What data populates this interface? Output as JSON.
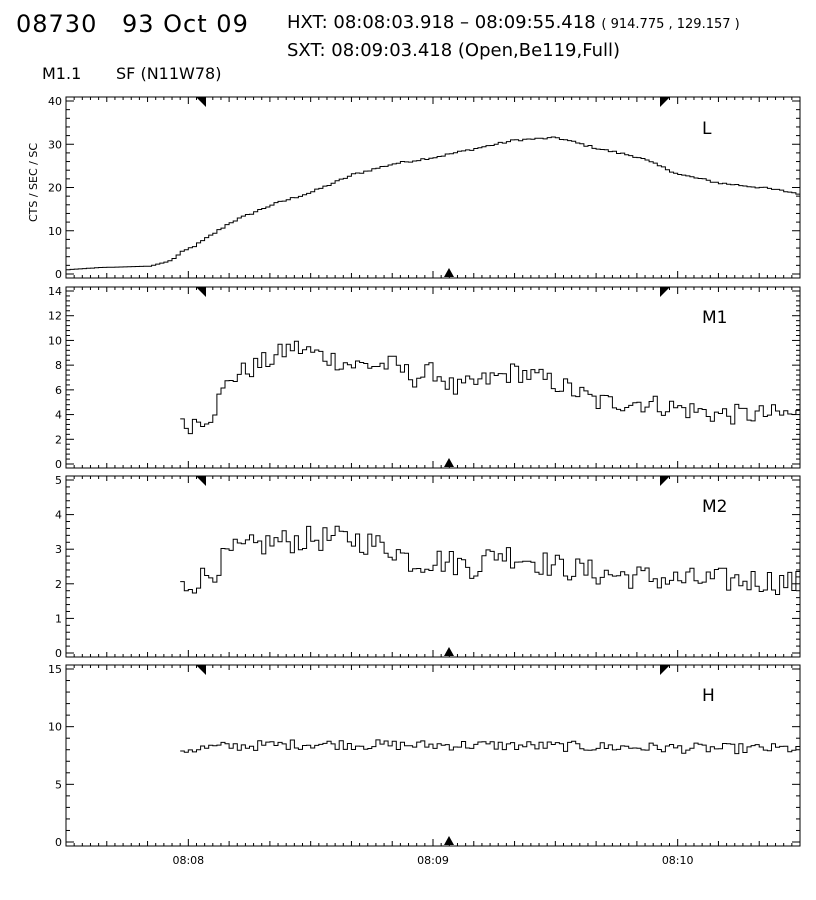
{
  "header": {
    "event_id": "08730",
    "date": "93 Oct 09",
    "hxt_label": "HXT:",
    "hxt_range": "08:08:03.918 – 08:09:55.418",
    "hxt_coords": "( 914.775 , 129.157 )",
    "sxt_label": "SXT:",
    "sxt_time": "08:09:03.418 (Open,Be119,Full)",
    "flare_class": "M1.1",
    "flare_location": "SF (N11W78)"
  },
  "chart_data": [
    {
      "type": "line",
      "style": "histogram",
      "band": "L",
      "ylabel": "CTS / SEC / SC",
      "ylim": [
        0,
        40
      ],
      "yticks": [
        0,
        10,
        20,
        30,
        40
      ],
      "xlim": [
        "08:07:30",
        "08:10:30"
      ],
      "xticks": [
        "08:08",
        "08:09",
        "08:10"
      ],
      "series": [
        {
          "x": [
            "08:07:30",
            "08:07:38",
            "08:07:50",
            "08:07:55",
            "08:07:58",
            "08:08:02",
            "08:08:10",
            "08:08:20",
            "08:08:30",
            "08:08:40",
            "08:08:50",
            "08:09:00",
            "08:09:10",
            "08:09:20",
            "08:09:30",
            "08:09:40",
            "08:09:50",
            "08:10:00",
            "08:10:10",
            "08:10:20",
            "08:10:30"
          ],
          "y": [
            1,
            1.5,
            1.8,
            3,
            5,
            7,
            12,
            16,
            19,
            23,
            25.5,
            27,
            29,
            31,
            31.5,
            29,
            27,
            23,
            21,
            20,
            18.5
          ]
        }
      ]
    },
    {
      "type": "line",
      "style": "histogram",
      "band": "M1",
      "ylabel": "",
      "ylim": [
        0,
        14
      ],
      "yticks": [
        0,
        2,
        4,
        6,
        8,
        10,
        12,
        14
      ],
      "xlim": [
        "08:07:30",
        "08:10:30"
      ],
      "xticks": [
        "08:08",
        "08:09",
        "08:10"
      ],
      "series": [
        {
          "x": [
            "08:07:58",
            "08:08:05",
            "08:08:10",
            "08:08:20",
            "08:08:25",
            "08:08:30",
            "08:08:40",
            "08:08:50",
            "08:08:55",
            "08:09:00",
            "08:09:05",
            "08:09:10",
            "08:09:20",
            "08:09:30",
            "08:09:40",
            "08:09:50",
            "08:10:00",
            "08:10:10",
            "08:10:20",
            "08:10:30"
          ],
          "y": [
            3,
            4,
            7,
            8.5,
            9.5,
            9,
            8,
            8,
            7,
            7.5,
            6,
            6.5,
            7.5,
            6.5,
            5,
            5,
            4.5,
            4,
            4,
            4
          ]
        }
      ]
    },
    {
      "type": "line",
      "style": "histogram",
      "band": "M2",
      "ylabel": "",
      "ylim": [
        0,
        5
      ],
      "yticks": [
        0,
        1,
        2,
        3,
        4,
        5
      ],
      "xlim": [
        "08:07:30",
        "08:10:30"
      ],
      "xticks": [
        "08:08",
        "08:09",
        "08:10"
      ],
      "series": [
        {
          "x": [
            "08:07:58",
            "08:08:05",
            "08:08:10",
            "08:08:20",
            "08:08:30",
            "08:08:40",
            "08:08:50",
            "08:08:55",
            "08:09:00",
            "08:09:10",
            "08:09:15",
            "08:09:20",
            "08:09:30",
            "08:09:40",
            "08:09:50",
            "08:10:00",
            "08:10:10",
            "08:10:20",
            "08:10:30"
          ],
          "y": [
            1.9,
            2.3,
            2.9,
            3.2,
            3.3,
            3.3,
            3.0,
            2.6,
            2.7,
            2.5,
            2.9,
            2.8,
            2.5,
            2.3,
            2.2,
            2.1,
            2.1,
            2.1,
            2.0
          ]
        }
      ]
    },
    {
      "type": "line",
      "style": "histogram",
      "band": "H",
      "ylabel": "",
      "ylim": [
        0,
        15
      ],
      "yticks": [
        0,
        5,
        10,
        15
      ],
      "xlim": [
        "08:07:30",
        "08:10:30"
      ],
      "xticks": [
        "08:08",
        "08:09",
        "08:10"
      ],
      "series": [
        {
          "x": [
            "08:07:58",
            "08:08:10",
            "08:08:30",
            "08:08:50",
            "08:09:10",
            "08:09:30",
            "08:09:50",
            "08:10:10",
            "08:10:30"
          ],
          "y": [
            8.0,
            8.3,
            8.5,
            8.4,
            8.4,
            8.3,
            8.2,
            8.1,
            8.1
          ]
        }
      ]
    }
  ]
}
